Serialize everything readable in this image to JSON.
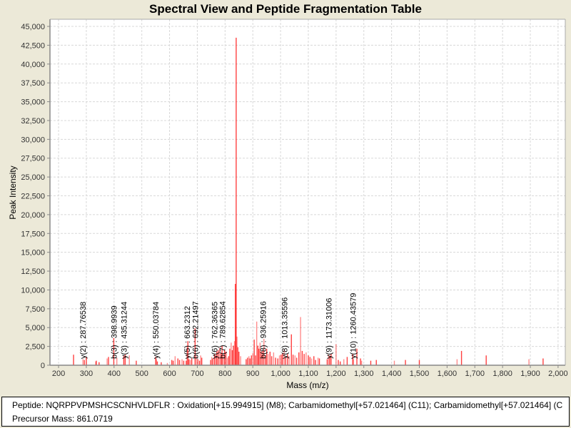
{
  "chart_data": {
    "type": "bar",
    "title": "Spectral View and Peptide Fragmentation Table",
    "xlabel": "Mass (m/z)",
    "ylabel": "Peak Intensity",
    "xlim": [
      169,
      2026
    ],
    "ylim": [
      0,
      45950
    ],
    "grid": true,
    "x_ticks": [
      "200",
      "300",
      "400",
      "500",
      "600",
      "700",
      "800",
      "900",
      "1,000",
      "1,100",
      "1,200",
      "1,300",
      "1,400",
      "1,500",
      "1,600",
      "1,700",
      "1,800",
      "1,900",
      "2,000"
    ],
    "x_tick_values": [
      200,
      300,
      400,
      500,
      600,
      700,
      800,
      900,
      1000,
      1100,
      1200,
      1300,
      1400,
      1500,
      1600,
      1700,
      1800,
      1900,
      2000
    ],
    "y_ticks": [
      "0",
      "2,500",
      "5,000",
      "7,500",
      "10,000",
      "12,500",
      "15,000",
      "17,500",
      "20,000",
      "22,500",
      "25,000",
      "27,500",
      "30,000",
      "32,500",
      "35,000",
      "37,500",
      "40,000",
      "42,500",
      "45,000"
    ],
    "y_tick_values": [
      0,
      2500,
      5000,
      7500,
      10000,
      12500,
      15000,
      17500,
      20000,
      22500,
      25000,
      27500,
      30000,
      32500,
      35000,
      37500,
      40000,
      42500,
      45000
    ],
    "series_color": "#FF0000",
    "peaks": [
      [
        254,
        1400
      ],
      [
        288,
        800
      ],
      [
        293,
        700
      ],
      [
        300,
        1100
      ],
      [
        334,
        500
      ],
      [
        336,
        600
      ],
      [
        346,
        400
      ],
      [
        375,
        900
      ],
      [
        380,
        1100
      ],
      [
        399,
        3600
      ],
      [
        410,
        1000
      ],
      [
        435,
        1200
      ],
      [
        440,
        1400
      ],
      [
        455,
        1300
      ],
      [
        480,
        600
      ],
      [
        550,
        1100
      ],
      [
        553,
        800
      ],
      [
        556,
        500
      ],
      [
        570,
        400
      ],
      [
        592,
        300
      ],
      [
        608,
        700
      ],
      [
        613,
        600
      ],
      [
        620,
        1200
      ],
      [
        630,
        900
      ],
      [
        636,
        700
      ],
      [
        645,
        800
      ],
      [
        651,
        600
      ],
      [
        660,
        600
      ],
      [
        663,
        2400
      ],
      [
        666,
        3200
      ],
      [
        670,
        800
      ],
      [
        675,
        700
      ],
      [
        680,
        900
      ],
      [
        692,
        4900
      ],
      [
        697,
        1200
      ],
      [
        702,
        800
      ],
      [
        708,
        600
      ],
      [
        712,
        1300
      ],
      [
        716,
        1000
      ],
      [
        748,
        700
      ],
      [
        752,
        1100
      ],
      [
        756,
        900
      ],
      [
        762,
        1500
      ],
      [
        766,
        1300
      ],
      [
        770,
        1800
      ],
      [
        775,
        2000
      ],
      [
        780,
        2300
      ],
      [
        785,
        1600
      ],
      [
        789,
        2600
      ],
      [
        793,
        1400
      ],
      [
        798,
        2000
      ],
      [
        803,
        1800
      ],
      [
        808,
        1000
      ],
      [
        813,
        1200
      ],
      [
        817,
        2200
      ],
      [
        822,
        3000
      ],
      [
        826,
        2000
      ],
      [
        830,
        2600
      ],
      [
        834,
        3200
      ],
      [
        837,
        10800
      ],
      [
        840,
        43500
      ],
      [
        843,
        3800
      ],
      [
        846,
        2400
      ],
      [
        850,
        1800
      ],
      [
        856,
        1200
      ],
      [
        876,
        800
      ],
      [
        881,
        1000
      ],
      [
        886,
        1200
      ],
      [
        890,
        900
      ],
      [
        895,
        1300
      ],
      [
        900,
        1600
      ],
      [
        905,
        3400
      ],
      [
        910,
        1300
      ],
      [
        914,
        5800
      ],
      [
        918,
        2600
      ],
      [
        922,
        2200
      ],
      [
        926,
        3000
      ],
      [
        930,
        1800
      ],
      [
        936,
        1900
      ],
      [
        940,
        3500
      ],
      [
        945,
        1300
      ],
      [
        950,
        2200
      ],
      [
        955,
        1500
      ],
      [
        962,
        1800
      ],
      [
        968,
        1200
      ],
      [
        975,
        1700
      ],
      [
        982,
        1000
      ],
      [
        990,
        900
      ],
      [
        996,
        1300
      ],
      [
        1002,
        1400
      ],
      [
        1007,
        1600
      ],
      [
        1013,
        2100
      ],
      [
        1018,
        1100
      ],
      [
        1025,
        1500
      ],
      [
        1031,
        1200
      ],
      [
        1039,
        4100
      ],
      [
        1045,
        1400
      ],
      [
        1052,
        1300
      ],
      [
        1058,
        1000
      ],
      [
        1066,
        1700
      ],
      [
        1072,
        6400
      ],
      [
        1078,
        1900
      ],
      [
        1085,
        1500
      ],
      [
        1092,
        1700
      ],
      [
        1100,
        1300
      ],
      [
        1106,
        1100
      ],
      [
        1112,
        900
      ],
      [
        1120,
        1200
      ],
      [
        1126,
        700
      ],
      [
        1135,
        1000
      ],
      [
        1140,
        900
      ],
      [
        1168,
        800
      ],
      [
        1173,
        1400
      ],
      [
        1177,
        1200
      ],
      [
        1182,
        1500
      ],
      [
        1200,
        2800
      ],
      [
        1208,
        700
      ],
      [
        1215,
        500
      ],
      [
        1228,
        800
      ],
      [
        1240,
        1100
      ],
      [
        1260,
        1500
      ],
      [
        1263,
        800
      ],
      [
        1275,
        2200
      ],
      [
        1288,
        900
      ],
      [
        1292,
        600
      ],
      [
        1325,
        600
      ],
      [
        1345,
        700
      ],
      [
        1410,
        600
      ],
      [
        1450,
        700
      ],
      [
        1500,
        700
      ],
      [
        1636,
        800
      ],
      [
        1652,
        1900
      ],
      [
        1741,
        1300
      ],
      [
        1895,
        800
      ],
      [
        1946,
        900
      ]
    ],
    "annotations": [
      {
        "label": "y(2) : 287.76538",
        "x": 287.76538
      },
      {
        "label": "b(3) : 398.9939",
        "x": 398.9939
      },
      {
        "label": "y(3) : 435.31244",
        "x": 435.31244
      },
      {
        "label": "y(4) : 550.03784",
        "x": 550.03784
      },
      {
        "label": "y(5) : 663.2312",
        "x": 663.2312
      },
      {
        "label": "b(6) : 692.21497",
        "x": 692.21497
      },
      {
        "label": "y(6) : 762.36365",
        "x": 762.36365
      },
      {
        "label": "b(7) : 789.62854",
        "x": 789.62854
      },
      {
        "label": "b(8) : 936.25916",
        "x": 936.25916
      },
      {
        "label": "y(8) : 1013.35596",
        "x": 1013.35596
      },
      {
        "label": "y(9) : 1173.31006",
        "x": 1173.31006
      },
      {
        "label": "y(10) : 1260.43579",
        "x": 1260.43579
      }
    ]
  },
  "info": {
    "peptide": "Peptide: NQRPPVPMSHCSCNHVLDFLR : Oxidation[+15.994915] (M8); Carbamidomethyl[+57.021464] (C11); Carbamidomethyl[+57.021464] (C",
    "precursor": "Precursor Mass: 861.0719"
  }
}
